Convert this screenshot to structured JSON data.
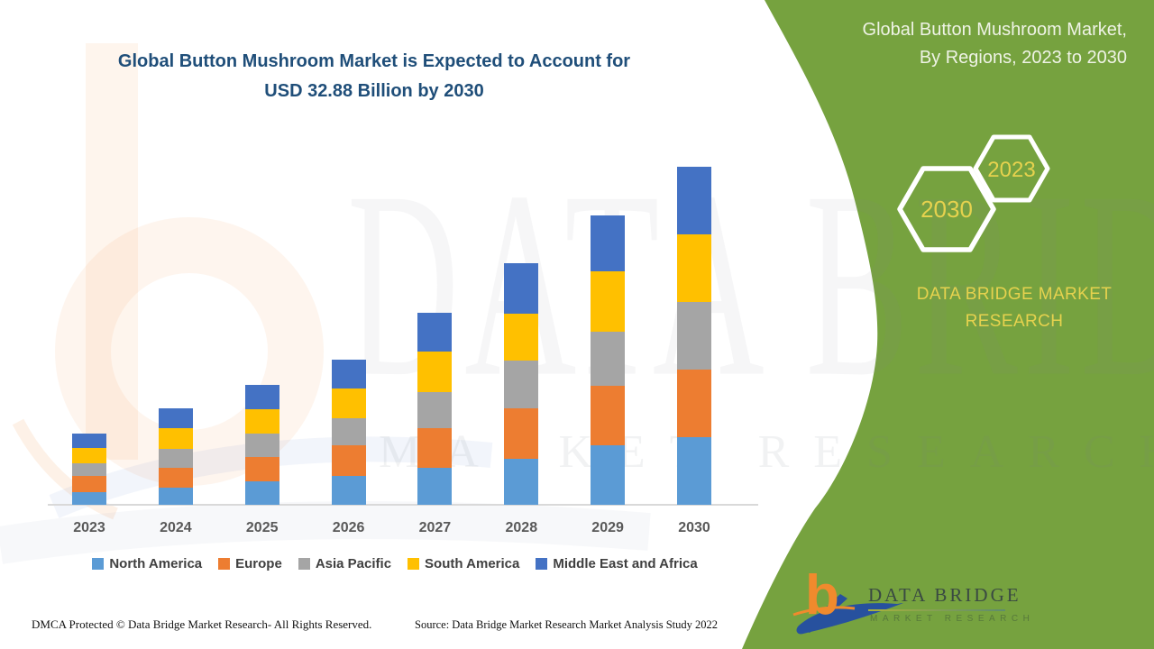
{
  "header": {
    "main_title_line1": "Global Button Mushroom Market is Expected to Account for",
    "main_title_line2": "USD 32.88 Billion by 2030"
  },
  "band": {
    "title": "Global Button Mushroom Market, By Regions, 2023 to 2030",
    "hexagon_large_label": "2030",
    "hexagon_small_label": "2023",
    "brand_line1": "DATA BRIDGE MARKET",
    "brand_line2": "RESEARCH",
    "colors": {
      "band_green": "#76A23F",
      "accent_yellow": "#E6D24E",
      "text_light": "#EFF3E6"
    }
  },
  "logo": {
    "letter": "b",
    "name": "DATA BRIDGE",
    "subtitle": "MARKET RESEARCH"
  },
  "watermark": {
    "big_text": "DATA BRIDGE",
    "spread_text": "MARKET RESEARCH"
  },
  "footer": {
    "dmca": "DMCA Protected © Data Bridge Market Research- All Rights Reserved.",
    "source": "Source: Data Bridge Market Research Market Analysis Study 2022"
  },
  "chart_data": {
    "type": "bar",
    "stacked": true,
    "title": "Global Button Mushroom Market is Expected to Account for USD 32.88 Billion by 2030",
    "units": "USD Billion (values estimated from bar heights; 2030 total labeled 32.88)",
    "categories": [
      "2023",
      "2024",
      "2025",
      "2026",
      "2027",
      "2028",
      "2029",
      "2030"
    ],
    "series": [
      {
        "name": "North America",
        "color": "#5B9BD5",
        "values": [
          1.23,
          1.67,
          2.28,
          2.81,
          3.6,
          4.47,
          5.79,
          6.58
        ]
      },
      {
        "name": "Europe",
        "color": "#ED7D31",
        "values": [
          1.58,
          1.93,
          2.37,
          2.98,
          3.86,
          4.91,
          5.79,
          6.58
        ]
      },
      {
        "name": "Asia Pacific",
        "color": "#A5A5A5",
        "values": [
          1.23,
          1.84,
          2.28,
          2.63,
          3.51,
          4.65,
          5.26,
          6.58
        ]
      },
      {
        "name": "South America",
        "color": "#FFC000",
        "values": [
          1.49,
          2.02,
          2.37,
          2.89,
          3.95,
          4.56,
          5.87,
          6.58
        ]
      },
      {
        "name": "Middle East and Africa",
        "color": "#4472C4",
        "values": [
          1.4,
          1.93,
          2.37,
          2.81,
          3.77,
          4.91,
          5.44,
          6.56
        ]
      }
    ],
    "totals": [
      6.93,
      9.39,
      11.67,
      14.12,
      18.69,
      23.5,
      28.15,
      32.88
    ],
    "xlabel": "",
    "ylabel": "",
    "y_axis_visible": false,
    "grid": false,
    "legend_position": "bottom"
  }
}
